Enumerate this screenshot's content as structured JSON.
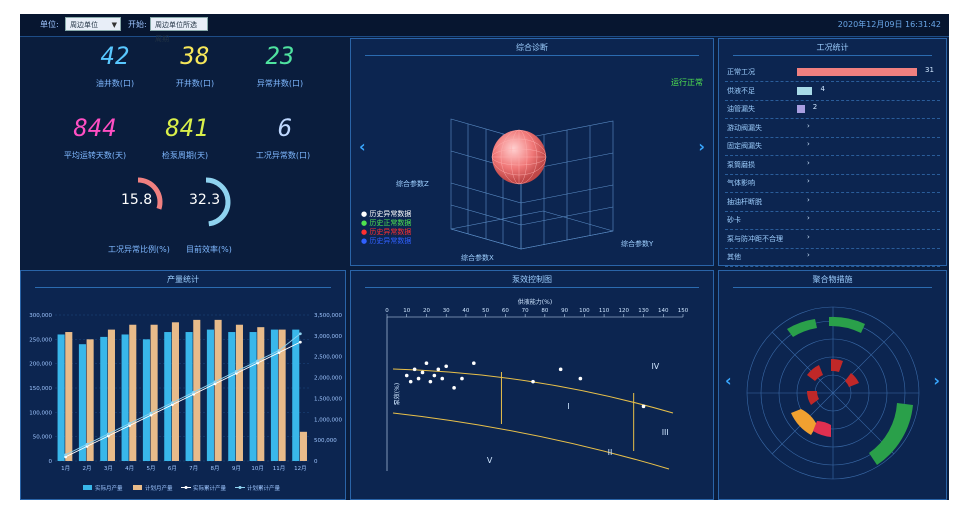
{
  "topbar": {
    "label1": "单位:",
    "select1": "周边单位",
    "label2": "开始:",
    "select2": "周边单位所选周期",
    "datetime": "2020年12月09日 16:31:42"
  },
  "stats": {
    "items": [
      {
        "value": "42",
        "label": "油井数(口)",
        "color": "#59c8ff"
      },
      {
        "value": "38",
        "label": "开井数(口)",
        "color": "#f6e75a"
      },
      {
        "value": "23",
        "label": "异常井数(口)",
        "color": "#4fe3a0"
      },
      {
        "value": "844",
        "label": "平均运转天数(天)",
        "color": "#ff4fc3"
      },
      {
        "value": "841",
        "label": "检泵周期(天)",
        "color": "#d9ef4a"
      },
      {
        "value": "6",
        "label": "工况异常数(口)",
        "color": "#bfd8ff"
      }
    ],
    "gauges": [
      {
        "value": "15.8",
        "label": "工况异常比例(%)",
        "color": "#f08080",
        "fraction": 0.3
      },
      {
        "value": "32.3",
        "label": "目前效率(%)",
        "color": "#8fd3f0",
        "fraction": 0.48
      }
    ]
  },
  "scatter3d": {
    "title": "综合诊断",
    "status": "运行正常",
    "axis_z": "综合参数Z",
    "axis_y": "综合参数Y",
    "axis_x": "综合参数X",
    "legend": [
      {
        "label": "历史异常数据",
        "color": "#ffffff"
      },
      {
        "label": "历史正常数据",
        "color": "#4fe34f"
      },
      {
        "label": "历史异常数据",
        "color": "#ff3030"
      },
      {
        "label": "历史异常数据",
        "color": "#3060ff"
      }
    ]
  },
  "work_stats": {
    "title": "工况统计",
    "rows": [
      {
        "name": "正常工况",
        "count": "31",
        "color": "#f08080",
        "value": 31
      },
      {
        "name": "供液不足",
        "count": "4",
        "color": "#a8dbe8",
        "value": 4
      },
      {
        "name": "油管漏失",
        "count": "2",
        "color": "#a89ee0",
        "value": 2
      },
      {
        "name": "游动阀漏失",
        "count": "",
        "color": "",
        "value": 0
      },
      {
        "name": "固定阀漏失",
        "count": "",
        "color": "",
        "value": 0
      },
      {
        "name": "泵筒磨损",
        "count": "",
        "color": "",
        "value": 0
      },
      {
        "name": "气体影响",
        "count": "",
        "color": "",
        "value": 0
      },
      {
        "name": "抽油杆断脱",
        "count": "",
        "color": "",
        "value": 0
      },
      {
        "name": "砂卡",
        "count": "",
        "color": "",
        "value": 0
      },
      {
        "name": "泵与防冲距不合理",
        "count": "",
        "color": "",
        "value": 0
      },
      {
        "name": "其他",
        "count": "",
        "color": "",
        "value": 0
      }
    ]
  },
  "production": {
    "title": "产量统计",
    "legend": [
      "实际月产量",
      "计划月产量",
      "实际累计产量",
      "计划累计产量"
    ]
  },
  "control_chart": {
    "title": "泵效控制图",
    "x_label": "供液能力(%)",
    "y_label": "泵效(%)",
    "zones": [
      "I",
      "II",
      "III",
      "IV",
      "V"
    ]
  },
  "polar": {
    "title": "聚合物措施"
  },
  "chart_data": [
    {
      "type": "bar",
      "title": "产量统计",
      "categories": [
        "1月",
        "2月",
        "3月",
        "4月",
        "5月",
        "6月",
        "7月",
        "8月",
        "9月",
        "10月",
        "11月",
        "12月"
      ],
      "ylim": [
        0,
        300000
      ],
      "y2lim": [
        0,
        3500000
      ],
      "yticks": [
        "0",
        "50,000",
        "100,000",
        "150,000",
        "200,000",
        "250,000",
        "300,000"
      ],
      "y2ticks": [
        "0",
        "500,000",
        "1,000,000",
        "1,500,000",
        "2,000,000",
        "2,500,000",
        "3,000,000",
        "3,500,000"
      ],
      "series": [
        {
          "name": "实际月产量",
          "color": "#39b7ea",
          "values": [
            260000,
            240000,
            255000,
            260000,
            250000,
            265000,
            265000,
            270000,
            265000,
            265000,
            270000,
            270000
          ]
        },
        {
          "name": "计划月产量",
          "color": "#e8bb8a",
          "values": [
            265000,
            250000,
            270000,
            280000,
            280000,
            285000,
            290000,
            290000,
            280000,
            275000,
            270000,
            60000
          ]
        },
        {
          "name": "实际累计产量",
          "color": "#ffffff",
          "axis": "y2",
          "values": [
            100000,
            350000,
            600000,
            850000,
            1100000,
            1350000,
            1600000,
            1850000,
            2100000,
            2350000,
            2600000,
            2850000
          ]
        },
        {
          "name": "计划累计产量",
          "color": "#8fd3f0",
          "axis": "y2",
          "values": [
            150000,
            400000,
            650000,
            900000,
            1150000,
            1400000,
            1650000,
            1900000,
            2150000,
            2400000,
            2650000,
            3050000
          ]
        }
      ]
    },
    {
      "type": "scatter",
      "title": "泵效控制图",
      "xlabel": "供液能力(%)",
      "ylabel": "泵效(%)",
      "xlim": [
        0,
        150
      ],
      "xticks": [
        0,
        10,
        20,
        30,
        40,
        50,
        60,
        70,
        80,
        90,
        100,
        110,
        120,
        130,
        140,
        150
      ],
      "ylim": [
        0,
        100
      ],
      "points": [
        [
          10,
          62
        ],
        [
          12,
          58
        ],
        [
          14,
          66
        ],
        [
          16,
          60
        ],
        [
          18,
          64
        ],
        [
          20,
          70
        ],
        [
          22,
          58
        ],
        [
          24,
          62
        ],
        [
          26,
          66
        ],
        [
          28,
          60
        ],
        [
          30,
          68
        ],
        [
          34,
          54
        ],
        [
          38,
          60
        ],
        [
          44,
          70
        ],
        [
          74,
          58
        ],
        [
          88,
          66
        ],
        [
          98,
          60
        ],
        [
          130,
          42
        ]
      ]
    }
  ]
}
